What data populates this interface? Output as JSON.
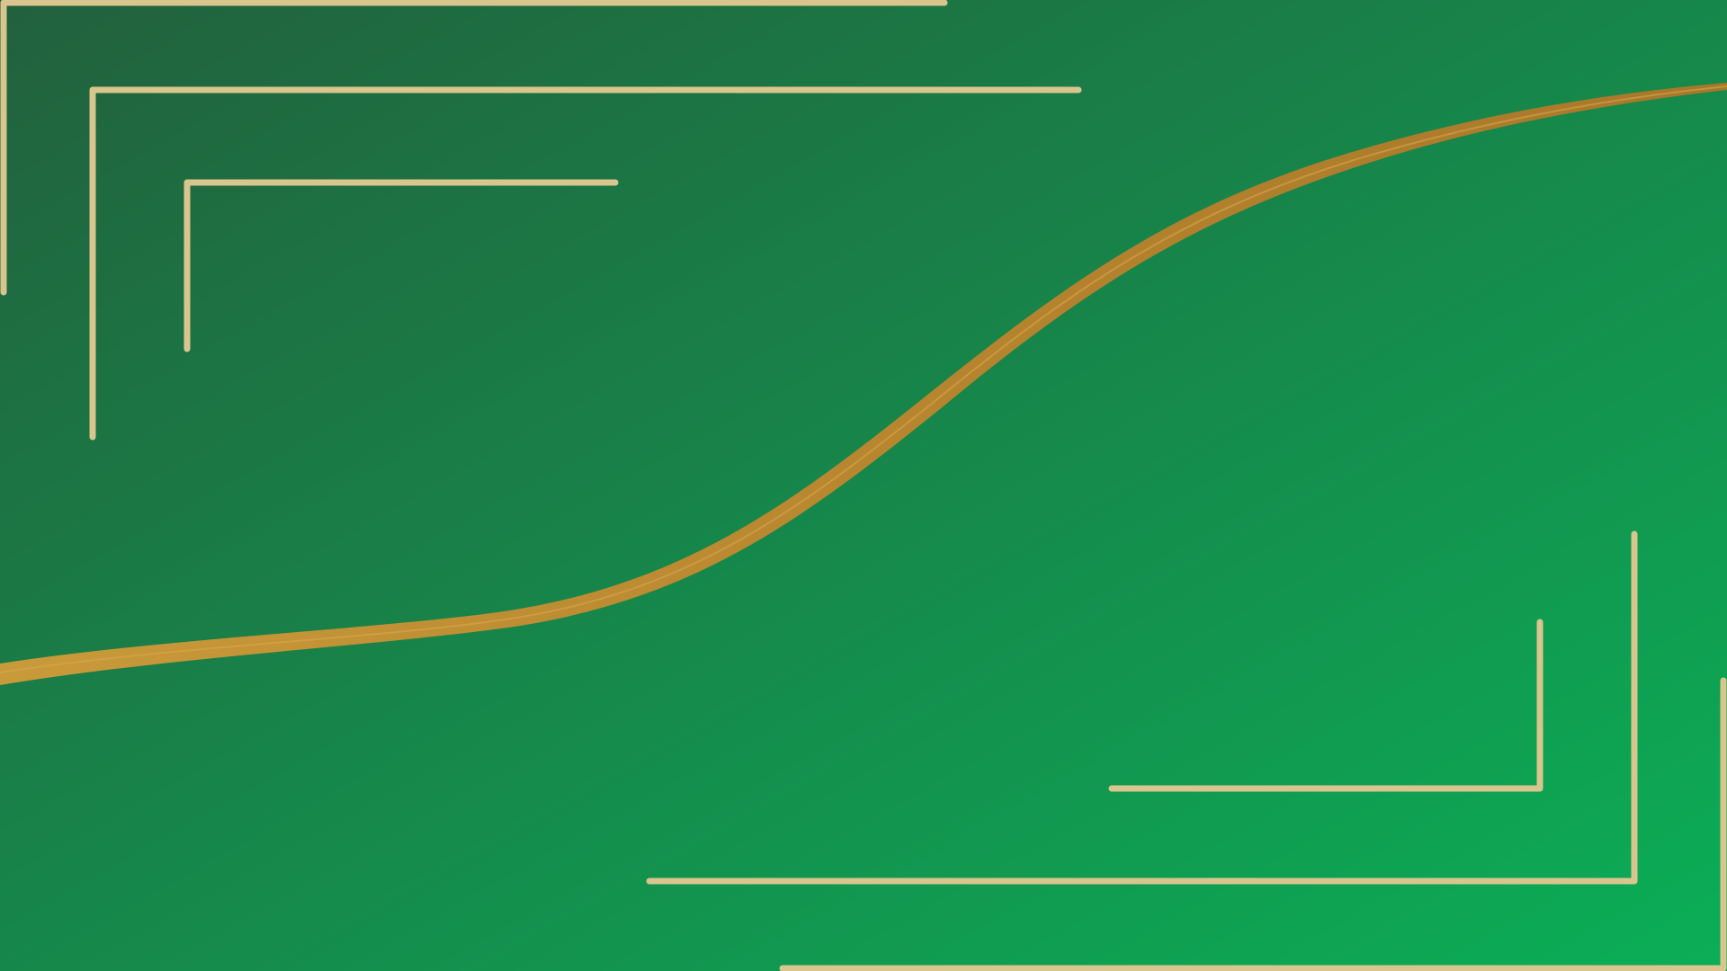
{
  "theme": {
    "background_top_left": "#22603d",
    "background_bottom_right": "#0bae57",
    "line_gold": "#d9c58e",
    "wave_gold_light": "#c99a3a",
    "wave_gold_dark": "#a8772a"
  },
  "decorations": {
    "corner_frames": [
      "top-left",
      "bottom-right"
    ],
    "nested_brackets_per_corner": 3,
    "wave": "diagonal-s-curve"
  }
}
